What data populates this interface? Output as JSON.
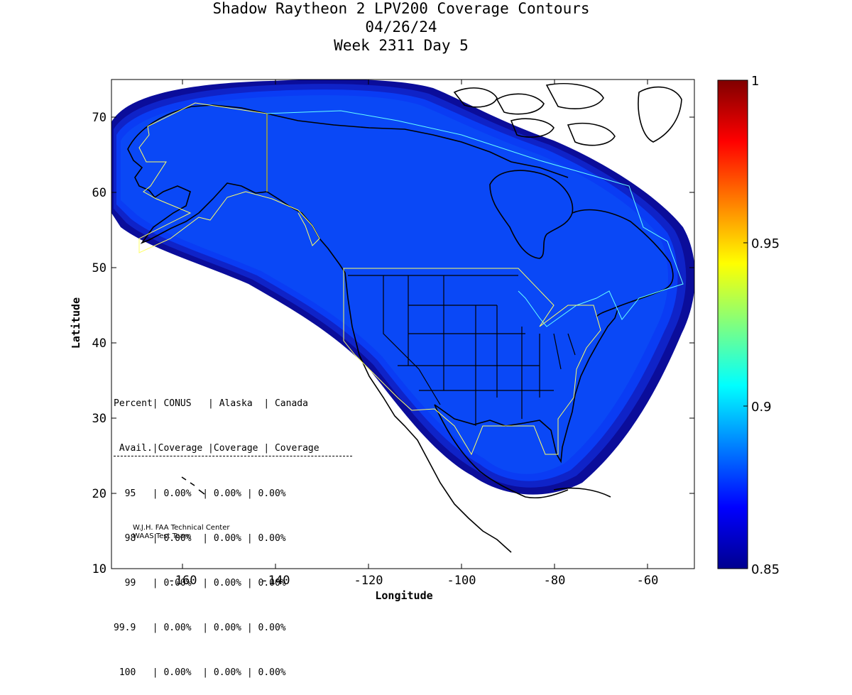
{
  "title": {
    "line1": "Shadow Raytheon 2 LPV200 Coverage Contours",
    "line2": "04/26/24",
    "line3": "Week 2311 Day 5"
  },
  "axes": {
    "xlabel": "Longitude",
    "ylabel": "Latitude",
    "xticks": [
      "-160",
      "-140",
      "-120",
      "-100",
      "-80",
      "-60"
    ],
    "yticks": [
      "10",
      "20",
      "30",
      "40",
      "50",
      "60",
      "70"
    ]
  },
  "colorbar": {
    "ticks": [
      "0.85",
      "0.9",
      "0.95",
      "1"
    ]
  },
  "stats": {
    "header1": "Percent| CONUS   | Alaska  | Canada",
    "header2": " Avail.|Coverage |Coverage | Coverage",
    "rows": [
      "  95   | 0.00%  | 0.00% | 0.00%",
      "  98   | 0.00%  | 0.00% | 0.00%",
      "  99   | 0.00%  | 0.00% | 0.00%",
      "99.9   | 0.00%  | 0.00% | 0.00%",
      " 100   | 0.00%  | 0.00% | 0.00%"
    ]
  },
  "credit": {
    "line1": "W.J.H. FAA Technical Center",
    "line2": "WAAS Test Team"
  },
  "chart_data": {
    "type": "heatmap",
    "xlabel": "Longitude",
    "ylabel": "Latitude",
    "xlim": [
      -175,
      -50
    ],
    "ylim": [
      10,
      75
    ],
    "colorbar_range": [
      0.85,
      1
    ],
    "colorscale": "jet",
    "levels": [
      {
        "value": 0.85,
        "color": "#0b0d9a"
      },
      {
        "value": 0.86,
        "color": "#0f23c8"
      },
      {
        "value": 0.87,
        "color": "#0a3cf4"
      },
      {
        "value": 0.875,
        "color": "#0a48f6"
      }
    ],
    "dominant_value": 0.875,
    "colors": {
      "coverage_main": "#0a48f6",
      "coverage_edge1": "#0a3cf4",
      "coverage_edge2": "#1028d8",
      "coverage_edge3": "#0d18b4",
      "service_conus": "#ffff66",
      "service_alaska": "#ffff66",
      "service_canada": "#66ffff"
    }
  }
}
